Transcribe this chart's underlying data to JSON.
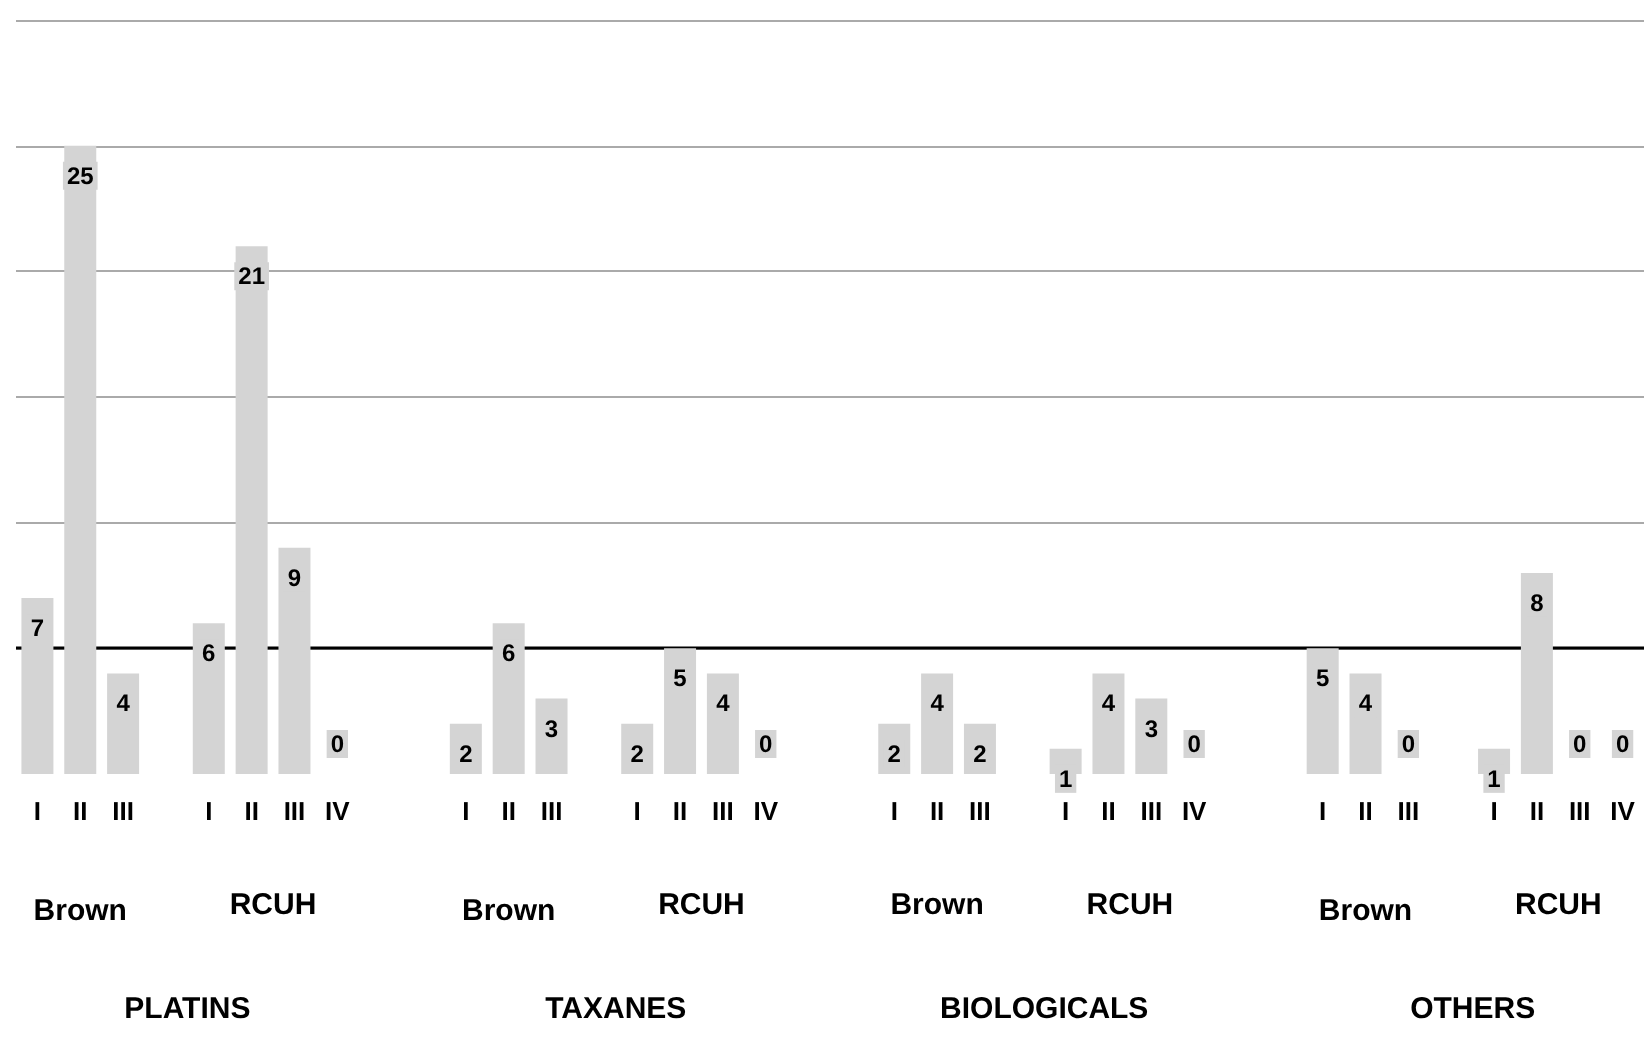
{
  "chart_data": {
    "type": "bar",
    "categories": [
      "I",
      "II",
      "III",
      null,
      "I",
      "II",
      "III",
      "IV",
      null,
      null,
      "I",
      "II",
      "III",
      null,
      "I",
      "II",
      "III",
      "IV",
      null,
      null,
      "I",
      "II",
      "III",
      null,
      "I",
      "II",
      "III",
      "IV",
      null,
      null,
      "I",
      "II",
      "III",
      null,
      "I",
      "II",
      "III",
      "IV"
    ],
    "values": [
      7,
      25,
      4,
      null,
      6,
      21,
      9,
      0,
      null,
      null,
      2,
      6,
      3,
      null,
      2,
      5,
      4,
      0,
      null,
      null,
      2,
      4,
      2,
      null,
      1,
      4,
      3,
      0,
      null,
      null,
      5,
      4,
      0,
      null,
      1,
      8,
      0,
      0
    ],
    "color": "#d4d4d4",
    "data_labels": true,
    "ylim": [
      0,
      30
    ],
    "yticks": [
      {
        "value": 5,
        "label": null
      },
      {
        "value": 10,
        "label": null
      },
      {
        "value": 15,
        "label": null
      },
      {
        "value": 20,
        "label": null
      },
      {
        "value": 25,
        "label": null
      },
      {
        "value": 30,
        "label": null
      }
    ],
    "tick_labels": "x",
    "grid": "y",
    "ref_lines": [
      {
        "axis": "y",
        "value": 5,
        "color": "#000000"
      }
    ],
    "annotations": [
      "Brown",
      "RCUH",
      "PLATINS",
      "Brown",
      "RCUH",
      "TAXANES",
      "Brown",
      "RCUH",
      "BIOLOGICALS",
      "Brown",
      "RCUH",
      "OTHERS"
    ]
  }
}
